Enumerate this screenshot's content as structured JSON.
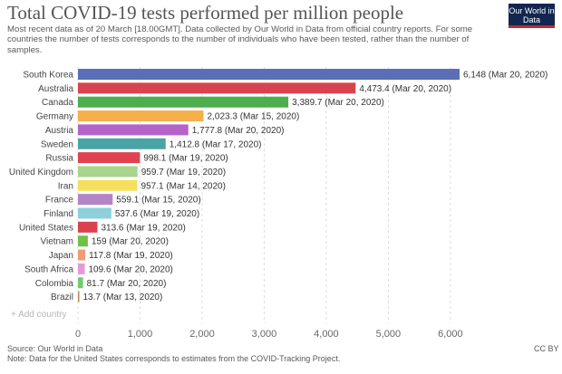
{
  "logo": {
    "text": "Our World in Data"
  },
  "footer": {
    "source": "Source: Our World in Data",
    "note": "Note: Data for the United States corresponds to estimates from the COVID-Tracking Project.",
    "license": "CC BY"
  },
  "controls": {
    "add_country": "Add country"
  },
  "colors": {
    "axis": "#999999",
    "grid": "#dddddd"
  },
  "chart_data": {
    "type": "bar",
    "orientation": "horizontal",
    "title": "Total COVID-19 tests performed per million people",
    "subtitle": "Most recent data as of 20 March [18.00GMT]. Data collected by Our World in Data from official country reports. For some countries the number of tests corresponds to the number of individuals who have been tested, rather than the number of samples.",
    "xlim": [
      0,
      6148
    ],
    "xticks": [
      0,
      1000,
      2000,
      3000,
      4000,
      5000,
      6000
    ],
    "xtick_labels": [
      "0",
      "1,000",
      "2,000",
      "3,000",
      "4,000",
      "5,000",
      "6,000"
    ],
    "grid": true,
    "legend": "none",
    "categories": [
      "South Korea",
      "Australia",
      "Canada",
      "Germany",
      "Austria",
      "Sweden",
      "Russia",
      "United Kingdom",
      "Iran",
      "France",
      "Finland",
      "United States",
      "Vietnam",
      "Japan",
      "South Africa",
      "Colombia",
      "Brazil"
    ],
    "values": [
      6148,
      4473.4,
      3389.7,
      2023.3,
      1777.8,
      1412.8,
      998.1,
      959.7,
      957.1,
      559.1,
      537.6,
      313.6,
      159,
      117.8,
      109.6,
      81.7,
      13.7
    ],
    "value_labels": [
      "6,148 (Mar 20, 2020)",
      "4,473.4 (Mar 20, 2020)",
      "3,389.7 (Mar 20, 2020)",
      "2,023.3 (Mar 15, 2020)",
      "1,777.8 (Mar 20, 2020)",
      "1,412.8 (Mar 17, 2020)",
      "998.1 (Mar 19, 2020)",
      "959.7 (Mar 19, 2020)",
      "957.1 (Mar 14, 2020)",
      "559.1 (Mar 15, 2020)",
      "537.6 (Mar 19, 2020)",
      "313.6 (Mar 19, 2020)",
      "159 (Mar 20, 2020)",
      "117.8 (Mar 19, 2020)",
      "109.6 (Mar 20, 2020)",
      "81.7 (Mar 20, 2020)",
      "13.7 (Mar 13, 2020)"
    ],
    "bar_colors": [
      "#5a6fb5",
      "#d8434e",
      "#4cae4c",
      "#f5b04a",
      "#b563c8",
      "#4aa4a4",
      "#e0434f",
      "#a8d48e",
      "#f5df5e",
      "#b485c6",
      "#8dd0dc",
      "#d8434e",
      "#70c145",
      "#f09c78",
      "#e39ad8",
      "#6fcc6f",
      "#b58a5e"
    ]
  }
}
